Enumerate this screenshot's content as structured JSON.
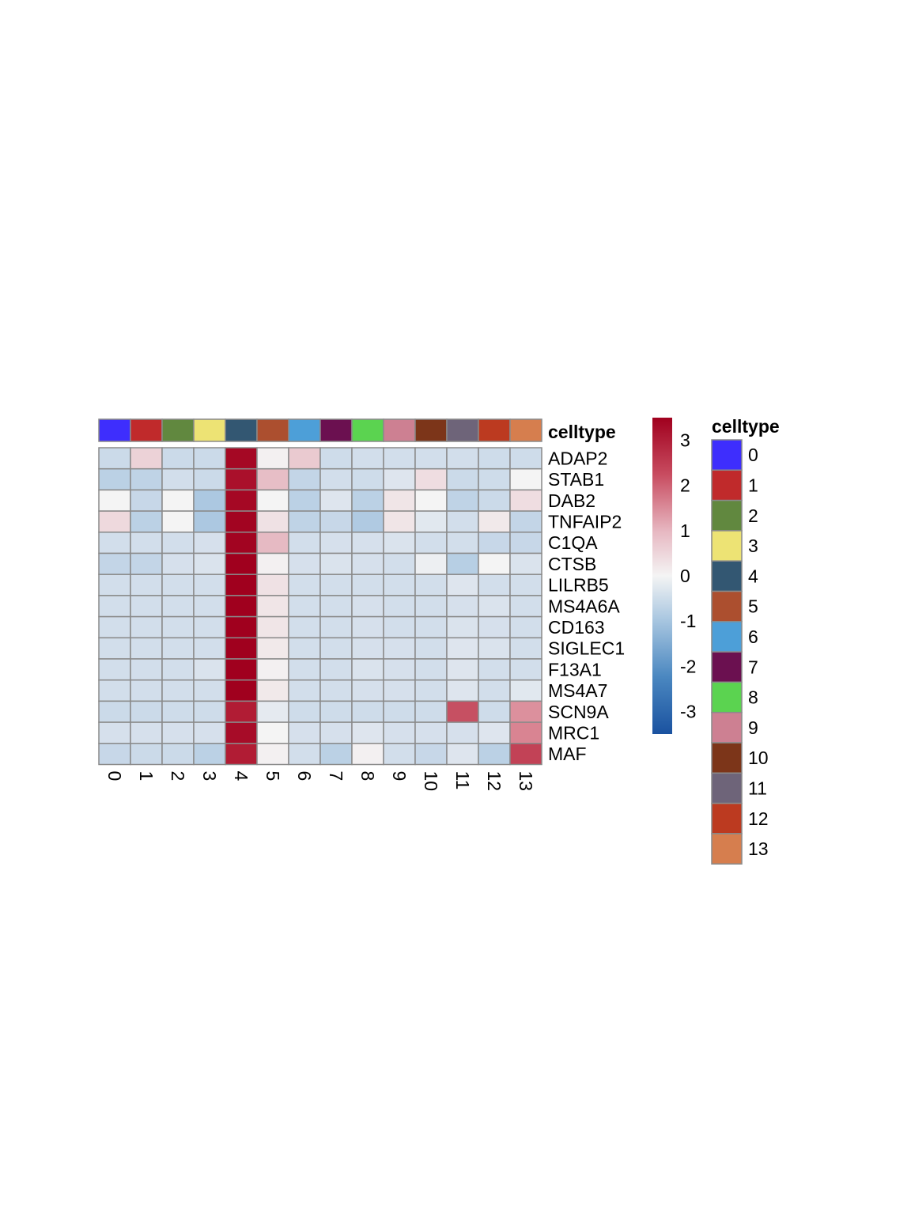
{
  "chart_data": {
    "type": "heatmap",
    "annotation_title": "celltype",
    "legend_title": "celltype",
    "columns": [
      "0",
      "1",
      "2",
      "3",
      "4",
      "5",
      "6",
      "7",
      "8",
      "9",
      "10",
      "11",
      "12",
      "13"
    ],
    "rows": [
      "ADAP2",
      "STAB1",
      "DAB2",
      "TNFAIP2",
      "C1QA",
      "CTSB",
      "LILRB5",
      "MS4A6A",
      "CD163",
      "SIGLEC1",
      "F13A1",
      "MS4A7",
      "SCN9A",
      "MRC1",
      "MAF"
    ],
    "values": [
      [
        -0.55,
        0.45,
        -0.55,
        -0.55,
        3.3,
        0.05,
        0.55,
        -0.5,
        -0.45,
        -0.45,
        -0.45,
        -0.45,
        -0.5,
        -0.5
      ],
      [
        -0.75,
        -0.7,
        -0.45,
        -0.55,
        3.1,
        0.7,
        -0.65,
        -0.45,
        -0.5,
        -0.3,
        0.3,
        -0.55,
        -0.5,
        0.0
      ],
      [
        0.0,
        -0.6,
        0.0,
        -0.95,
        3.3,
        0.0,
        -0.75,
        -0.3,
        -0.75,
        0.2,
        0.0,
        -0.7,
        -0.55,
        0.3
      ],
      [
        0.35,
        -0.75,
        0.0,
        -0.95,
        3.4,
        0.25,
        -0.7,
        -0.6,
        -0.9,
        0.2,
        -0.25,
        -0.45,
        0.15,
        -0.65
      ],
      [
        -0.45,
        -0.45,
        -0.45,
        -0.4,
        3.4,
        0.75,
        -0.45,
        -0.4,
        -0.4,
        -0.35,
        -0.45,
        -0.45,
        -0.6,
        -0.6
      ],
      [
        -0.65,
        -0.65,
        -0.4,
        -0.35,
        3.5,
        0.05,
        -0.4,
        -0.35,
        -0.4,
        -0.45,
        -0.1,
        -0.8,
        0.0,
        -0.35
      ],
      [
        -0.45,
        -0.45,
        -0.45,
        -0.45,
        3.5,
        0.25,
        -0.45,
        -0.45,
        -0.45,
        -0.45,
        -0.45,
        -0.3,
        -0.45,
        -0.45
      ],
      [
        -0.45,
        -0.45,
        -0.45,
        -0.45,
        3.5,
        0.2,
        -0.45,
        -0.45,
        -0.4,
        -0.45,
        -0.45,
        -0.4,
        -0.35,
        -0.45
      ],
      [
        -0.45,
        -0.45,
        -0.45,
        -0.45,
        3.5,
        0.2,
        -0.45,
        -0.45,
        -0.4,
        -0.45,
        -0.45,
        -0.35,
        -0.4,
        -0.45
      ],
      [
        -0.45,
        -0.45,
        -0.45,
        -0.45,
        3.5,
        0.15,
        -0.45,
        -0.45,
        -0.4,
        -0.4,
        -0.45,
        -0.3,
        -0.35,
        -0.45
      ],
      [
        -0.45,
        -0.45,
        -0.45,
        -0.35,
        3.5,
        0.05,
        -0.45,
        -0.45,
        -0.35,
        -0.4,
        -0.45,
        -0.3,
        -0.45,
        -0.45
      ],
      [
        -0.45,
        -0.45,
        -0.45,
        -0.45,
        3.5,
        0.15,
        -0.45,
        -0.45,
        -0.4,
        -0.4,
        -0.45,
        -0.3,
        -0.45,
        -0.25
      ],
      [
        -0.55,
        -0.55,
        -0.5,
        -0.5,
        2.8,
        -0.2,
        -0.5,
        -0.5,
        -0.5,
        -0.5,
        -0.5,
        2.05,
        -0.5,
        1.3
      ],
      [
        -0.4,
        -0.4,
        -0.4,
        -0.4,
        3.2,
        0.0,
        -0.4,
        -0.4,
        -0.3,
        -0.4,
        -0.4,
        -0.4,
        -0.3,
        1.45
      ],
      [
        -0.6,
        -0.55,
        -0.55,
        -0.75,
        2.8,
        0.05,
        -0.45,
        -0.75,
        0.05,
        -0.45,
        -0.6,
        -0.3,
        -0.75,
        2.2
      ]
    ],
    "celltype_colors": [
      "#3E2EFD",
      "#C02A2B",
      "#61883F",
      "#EDE374",
      "#335772",
      "#AC4F2F",
      "#4D9FD8",
      "#6B1050",
      "#5BD350",
      "#CD8092",
      "#7C3519",
      "#6E6479",
      "#BC3A20",
      "#D67E4E"
    ],
    "scale_ticks": [
      3,
      2,
      1,
      0,
      -1,
      -2,
      -3
    ],
    "scale_range": [
      -3.5,
      3.5
    ],
    "scale_colors": [
      "#2166AC",
      "#F7F7F7",
      "#A50026"
    ]
  }
}
